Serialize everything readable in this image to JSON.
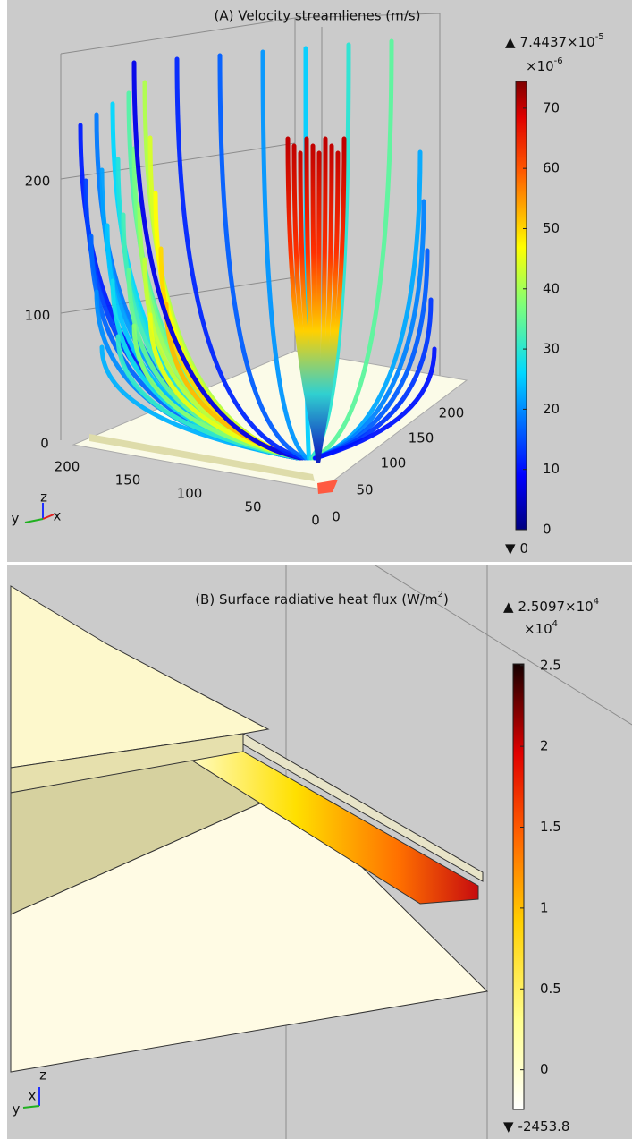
{
  "panel_a": {
    "title": "(A) Velocity streamlienes (m/s)",
    "colorbar": {
      "max_marker": "▲",
      "max_base": "7.4437×10",
      "max_exp": "-5",
      "scale_base": "×10",
      "scale_exp": "-6",
      "ticks": [
        0,
        10,
        20,
        30,
        40,
        50,
        60,
        70
      ],
      "clim": [
        0,
        74.437
      ],
      "min_marker": "▼",
      "min": 0
    },
    "axes": {
      "z_ticks": [
        0,
        100,
        200
      ],
      "x_ticks": [
        200,
        150,
        100,
        50,
        0
      ],
      "y_ticks": [
        0,
        50,
        100,
        150,
        200
      ]
    },
    "triad": {
      "z": "z",
      "y": "y",
      "x": "x"
    }
  },
  "panel_b": {
    "title_base": "(B) Surface radiative heat flux (W/m",
    "title_exp": "2",
    "title_end": ")",
    "colorbar": {
      "max_marker": "▲",
      "max_base": "2.5097×10",
      "max_exp": "4",
      "scale_base": "×10",
      "scale_exp": "4",
      "ticks": [
        0,
        0.5,
        1,
        1.5,
        2,
        2.5
      ],
      "clim": [
        -0.24538,
        2.5097
      ],
      "min_marker": "▼",
      "min": -2453.8
    },
    "triad": {
      "z": "z",
      "x": "x",
      "y": "y"
    }
  }
}
